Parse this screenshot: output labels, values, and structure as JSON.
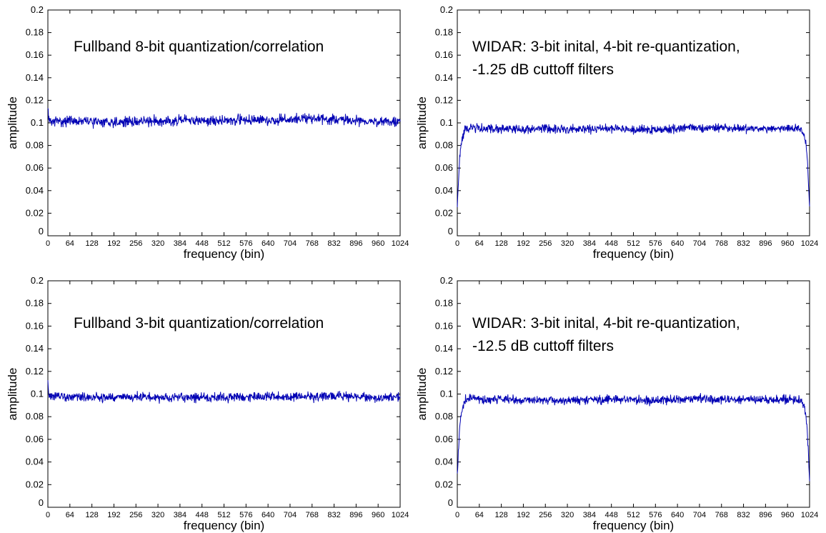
{
  "chart_data": [
    {
      "type": "line",
      "title": "Fullband 8-bit quantization/correlation",
      "xlabel": "frequency (bin)",
      "ylabel": "amplitude",
      "xlim": [
        0,
        1024
      ],
      "ylim": [
        0,
        0.2
      ],
      "xticks": [
        "0",
        "64",
        "128",
        "192",
        "256",
        "320",
        "384",
        "448",
        "512",
        "576",
        "640",
        "704",
        "768",
        "832",
        "896",
        "960",
        "1024"
      ],
      "yticks": [
        "0",
        "0.02",
        "0.04",
        "0.06",
        "0.08",
        "0.1",
        "0.12",
        "0.14",
        "0.16",
        "0.18",
        "0.2"
      ],
      "grid": false,
      "series": [
        {
          "color": "#0000b4",
          "x": [
            0,
            2,
            4,
            64,
            128,
            192,
            256,
            320,
            384,
            448,
            512,
            576,
            640,
            704,
            768,
            832,
            896,
            960,
            1024
          ],
          "y": [
            0.118,
            0.105,
            0.101,
            0.102,
            0.101,
            0.101,
            0.101,
            0.102,
            0.102,
            0.102,
            0.102,
            0.103,
            0.102,
            0.103,
            0.104,
            0.103,
            0.102,
            0.101,
            0.101
          ],
          "noise": 0.0035
        }
      ]
    },
    {
      "type": "line",
      "title": "WIDAR: 3-bit inital, 4-bit re-quantization,\n-1.25 dB cuttoff filters",
      "xlabel": "frequency (bin)",
      "ylabel": "amplitude",
      "xlim": [
        0,
        1024
      ],
      "ylim": [
        0,
        0.2
      ],
      "xticks": [
        "0",
        "64",
        "128",
        "192",
        "256",
        "320",
        "384",
        "448",
        "512",
        "576",
        "640",
        "704",
        "768",
        "832",
        "896",
        "960",
        "1024"
      ],
      "yticks": [
        "0",
        "0.02",
        "0.04",
        "0.06",
        "0.08",
        "0.1",
        "0.12",
        "0.14",
        "0.16",
        "0.18",
        "0.2"
      ],
      "grid": false,
      "series": [
        {
          "color": "#0000b4",
          "x": [
            0,
            3,
            6,
            10,
            16,
            24,
            40,
            64,
            128,
            192,
            256,
            320,
            384,
            448,
            512,
            576,
            640,
            704,
            768,
            832,
            896,
            960,
            990,
            1000,
            1008,
            1014,
            1018,
            1021,
            1024
          ],
          "y": [
            0.026,
            0.048,
            0.065,
            0.078,
            0.088,
            0.095,
            0.096,
            0.095,
            0.095,
            0.094,
            0.095,
            0.094,
            0.095,
            0.095,
            0.094,
            0.094,
            0.095,
            0.096,
            0.095,
            0.095,
            0.095,
            0.095,
            0.095,
            0.094,
            0.09,
            0.08,
            0.065,
            0.045,
            0.025
          ],
          "noise": 0.003
        }
      ]
    },
    {
      "type": "line",
      "title": "Fullband 3-bit quantization/correlation",
      "xlabel": "frequency (bin)",
      "ylabel": "amplitude",
      "xlim": [
        0,
        1024
      ],
      "ylim": [
        0,
        0.2
      ],
      "xticks": [
        "0",
        "64",
        "128",
        "192",
        "256",
        "320",
        "384",
        "448",
        "512",
        "576",
        "640",
        "704",
        "768",
        "832",
        "896",
        "960",
        "1024"
      ],
      "yticks": [
        "0",
        "0.02",
        "0.04",
        "0.06",
        "0.08",
        "0.1",
        "0.12",
        "0.14",
        "0.16",
        "0.18",
        "0.2"
      ],
      "grid": false,
      "series": [
        {
          "color": "#0000b4",
          "x": [
            0,
            2,
            4,
            64,
            128,
            192,
            256,
            320,
            384,
            448,
            512,
            576,
            640,
            704,
            768,
            832,
            896,
            960,
            1024
          ],
          "y": [
            0.113,
            0.102,
            0.098,
            0.097,
            0.097,
            0.097,
            0.098,
            0.097,
            0.097,
            0.097,
            0.097,
            0.097,
            0.098,
            0.098,
            0.097,
            0.098,
            0.098,
            0.097,
            0.097
          ],
          "noise": 0.003
        }
      ]
    },
    {
      "type": "line",
      "title": "WIDAR: 3-bit inital, 4-bit re-quantization,\n-12.5 dB cuttoff filters",
      "xlabel": "frequency (bin)",
      "ylabel": "amplitude",
      "xlim": [
        0,
        1024
      ],
      "ylim": [
        0,
        0.2
      ],
      "xticks": [
        "0",
        "64",
        "128",
        "192",
        "256",
        "320",
        "384",
        "448",
        "512",
        "576",
        "640",
        "704",
        "768",
        "832",
        "896",
        "960",
        "1024"
      ],
      "yticks": [
        "0",
        "0.02",
        "0.04",
        "0.06",
        "0.08",
        "0.1",
        "0.12",
        "0.14",
        "0.16",
        "0.18",
        "0.2"
      ],
      "grid": false,
      "series": [
        {
          "color": "#0000b4",
          "x": [
            0,
            3,
            6,
            10,
            16,
            24,
            40,
            64,
            128,
            192,
            256,
            320,
            384,
            448,
            512,
            576,
            640,
            704,
            768,
            832,
            896,
            960,
            990,
            1000,
            1008,
            1014,
            1018,
            1021,
            1024
          ],
          "y": [
            0.027,
            0.05,
            0.066,
            0.079,
            0.088,
            0.095,
            0.096,
            0.095,
            0.095,
            0.095,
            0.095,
            0.094,
            0.095,
            0.095,
            0.095,
            0.094,
            0.095,
            0.096,
            0.095,
            0.095,
            0.095,
            0.095,
            0.095,
            0.094,
            0.09,
            0.08,
            0.064,
            0.044,
            0.023
          ],
          "noise": 0.003
        }
      ]
    }
  ]
}
